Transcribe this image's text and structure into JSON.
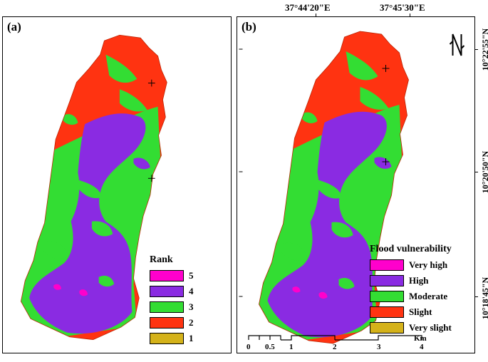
{
  "panels": {
    "a": {
      "label": "(a)",
      "legend": {
        "title": "Rank",
        "items": [
          {
            "label": "5",
            "color": "#ff00cc"
          },
          {
            "label": "4",
            "color": "#8a2be2"
          },
          {
            "label": "3",
            "color": "#33dd33"
          },
          {
            "label": "2",
            "color": "#ff3311"
          },
          {
            "label": "1",
            "color": "#d4b21a"
          }
        ]
      }
    },
    "b": {
      "label": "(b)",
      "legend": {
        "title": "Flood vulnerability",
        "items": [
          {
            "label": "Very high",
            "color": "#ff00cc"
          },
          {
            "label": "High",
            "color": "#8a2be2"
          },
          {
            "label": "Moderate",
            "color": "#33dd33"
          },
          {
            "label": "Slight",
            "color": "#ff3311"
          },
          {
            "label": "Very slight",
            "color": "#d4b21a"
          }
        ]
      }
    }
  },
  "coordinates": {
    "longitude": [
      "37°44'20\"E",
      "37°45'30\"E"
    ],
    "latitude": [
      "10°22'55\"N",
      "10°20'50\"N",
      "10°18'45\"N"
    ]
  },
  "scale": {
    "labels": [
      "0",
      "0.5",
      "1",
      "2",
      "3",
      "4"
    ],
    "unit": "Km"
  },
  "north_arrow": {
    "icon": "north-arrow-icon"
  }
}
